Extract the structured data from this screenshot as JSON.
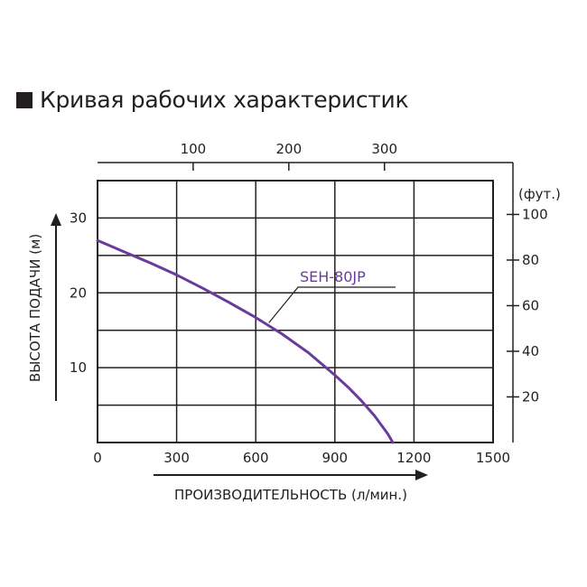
{
  "title": "Кривая рабочих характеристик",
  "chart_data": {
    "type": "line",
    "title": "Кривая рабочих характеристик",
    "xlabel": "ПРОИЗВОДИТЕЛЬНОСТЬ (л/мин.)",
    "ylabel": "ВЫСОТА ПОДАЧИ (м)",
    "xlim": [
      0,
      1500
    ],
    "ylim": [
      0,
      35
    ],
    "xticks": [
      0,
      300,
      600,
      900,
      1200,
      1500
    ],
    "yticks": [
      10,
      20,
      30
    ],
    "grid": true,
    "top_axis": {
      "unit": "",
      "ticks": [
        100,
        200,
        300
      ]
    },
    "right_axis": {
      "unit": "(фут.)",
      "ticks": [
        20,
        40,
        60,
        80,
        100
      ]
    },
    "colors": {
      "series": "#6a3c9a",
      "axis": "#231f20"
    },
    "series": [
      {
        "name": "SEH-80JP",
        "x": [
          0,
          100,
          200,
          300,
          400,
          500,
          600,
          700,
          800,
          900,
          950,
          1000,
          1050,
          1100,
          1120
        ],
        "y": [
          27,
          25.5,
          24.0,
          22.4,
          20.6,
          18.7,
          16.7,
          14.5,
          12.0,
          9.0,
          7.4,
          5.6,
          3.6,
          1.2,
          0
        ]
      }
    ]
  }
}
